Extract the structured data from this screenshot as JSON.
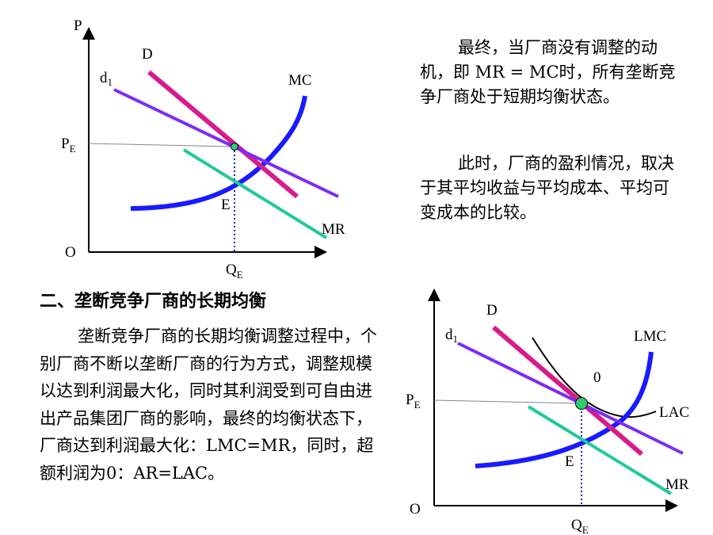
{
  "top_text": {
    "para1": "最终，当厂商没有调整的动机，即 MR = MC时，所有垄断竞争厂商处于短期均衡状态。",
    "para2": "此时，厂商的盈利情况，取决于其平均收益与平均成本、平均可变成本的比较。"
  },
  "section": {
    "heading": "二、垄断竞争厂商的长期均衡",
    "body": "垄断竞争厂商的长期均衡调整过程中，个别厂商不断以垄断厂商的行为方式，调整规模以达到利润最大化，同时其利润受到可自由进出产品集团厂商的影响，最终的均衡状态下，厂商达到利润最大化：LMC=MR，同时，超额利润为0：AR=LAC。"
  },
  "graph1": {
    "y_axis": "P",
    "origin": "O",
    "price_label": "P",
    "price_sub": "E",
    "qty_label": "Q",
    "qty_sub": "E",
    "demand_D": "D",
    "demand_d": "d",
    "demand_d_sub": "1",
    "mc": "MC",
    "mr": "MR",
    "point_e": "E"
  },
  "graph2": {
    "origin": "O",
    "price_label": "P",
    "price_sub": "E",
    "qty_label": "Q",
    "qty_sub": "E",
    "demand_D": "D",
    "demand_d": "d",
    "demand_d_sub": "1",
    "lmc": "LMC",
    "lac": "LAC",
    "mr": "MR",
    "point_e": "E",
    "zero": "0"
  },
  "colors": {
    "mc": "#1a1aff",
    "d_curve": "#d81b8c",
    "d1_curve": "#7b2cf5",
    "mr_curve": "#20c99a",
    "point": "#2ecc71"
  }
}
